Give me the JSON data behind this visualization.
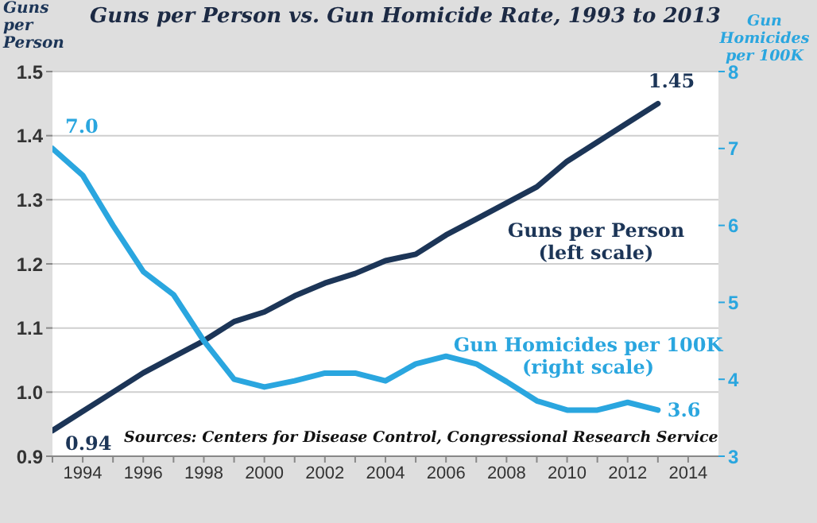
{
  "chart_data": {
    "type": "line",
    "title": "Guns per Person vs. Gun Homicide Rate, 1993 to 2013",
    "ylabel": "Guns per Person",
    "y2label": "Gun Homicides per 100K",
    "x": [
      1993,
      1994,
      1995,
      1996,
      1997,
      1998,
      1999,
      2000,
      2001,
      2002,
      2003,
      2004,
      2005,
      2006,
      2007,
      2008,
      2009,
      2010,
      2011,
      2012,
      2013
    ],
    "series": [
      {
        "name": "Guns per Person\n(left scale)",
        "color": "#1c3557",
        "values": [
          0.94,
          0.97,
          1.0,
          1.03,
          1.055,
          1.08,
          1.11,
          1.125,
          1.15,
          1.17,
          1.185,
          1.205,
          1.215,
          1.245,
          1.27,
          1.295,
          1.32,
          1.36,
          1.39,
          1.42,
          1.45
        ],
        "value_labels": [
          "0.94",
          null,
          null,
          null,
          null,
          null,
          null,
          null,
          null,
          null,
          null,
          null,
          null,
          null,
          null,
          null,
          null,
          null,
          null,
          null,
          "1.45"
        ]
      },
      {
        "name": "Gun Homicides per 100K\n(right scale)",
        "color": "#2aa6df",
        "axis": "y2",
        "values": [
          7.0,
          6.65,
          6.0,
          5.4,
          5.1,
          4.5,
          4.0,
          3.9,
          3.98,
          4.08,
          4.08,
          3.98,
          4.2,
          4.3,
          4.2,
          3.97,
          3.72,
          3.6,
          3.6,
          3.7,
          3.6
        ],
        "value_labels": [
          "7.0",
          null,
          null,
          null,
          null,
          null,
          null,
          null,
          null,
          null,
          null,
          null,
          null,
          null,
          null,
          null,
          null,
          null,
          null,
          null,
          "3.6"
        ]
      }
    ],
    "xlim": [
      1993,
      2015
    ],
    "xticks": [
      {
        "value": 1993,
        "label": null
      },
      1994,
      {
        "value": 1995,
        "label": null
      },
      1996,
      {
        "value": 1997,
        "label": null
      },
      1998,
      {
        "value": 1999,
        "label": null
      },
      2000,
      {
        "value": 2001,
        "label": null
      },
      2002,
      {
        "value": 2003,
        "label": null
      },
      2004,
      {
        "value": 2005,
        "label": null
      },
      2006,
      {
        "value": 2007,
        "label": null
      },
      2008,
      {
        "value": 2009,
        "label": null
      },
      2010,
      {
        "value": 2011,
        "label": null
      },
      2012,
      {
        "value": 2013,
        "label": null
      },
      2014
    ],
    "ylim": [
      0.9,
      1.5
    ],
    "yticks": [
      0.9,
      {
        "value": 1.0,
        "label": "1.0"
      },
      1.1,
      1.2,
      1.3,
      1.4,
      1.5
    ],
    "y2lim": [
      3,
      8
    ],
    "y2ticks": [
      3,
      4,
      5,
      6,
      7,
      8
    ],
    "grid": "y",
    "legend": false,
    "marker": "none",
    "line_style": "solid",
    "annotations": [
      "Sources: Centers for Disease Control, Congressional Research Service"
    ]
  }
}
